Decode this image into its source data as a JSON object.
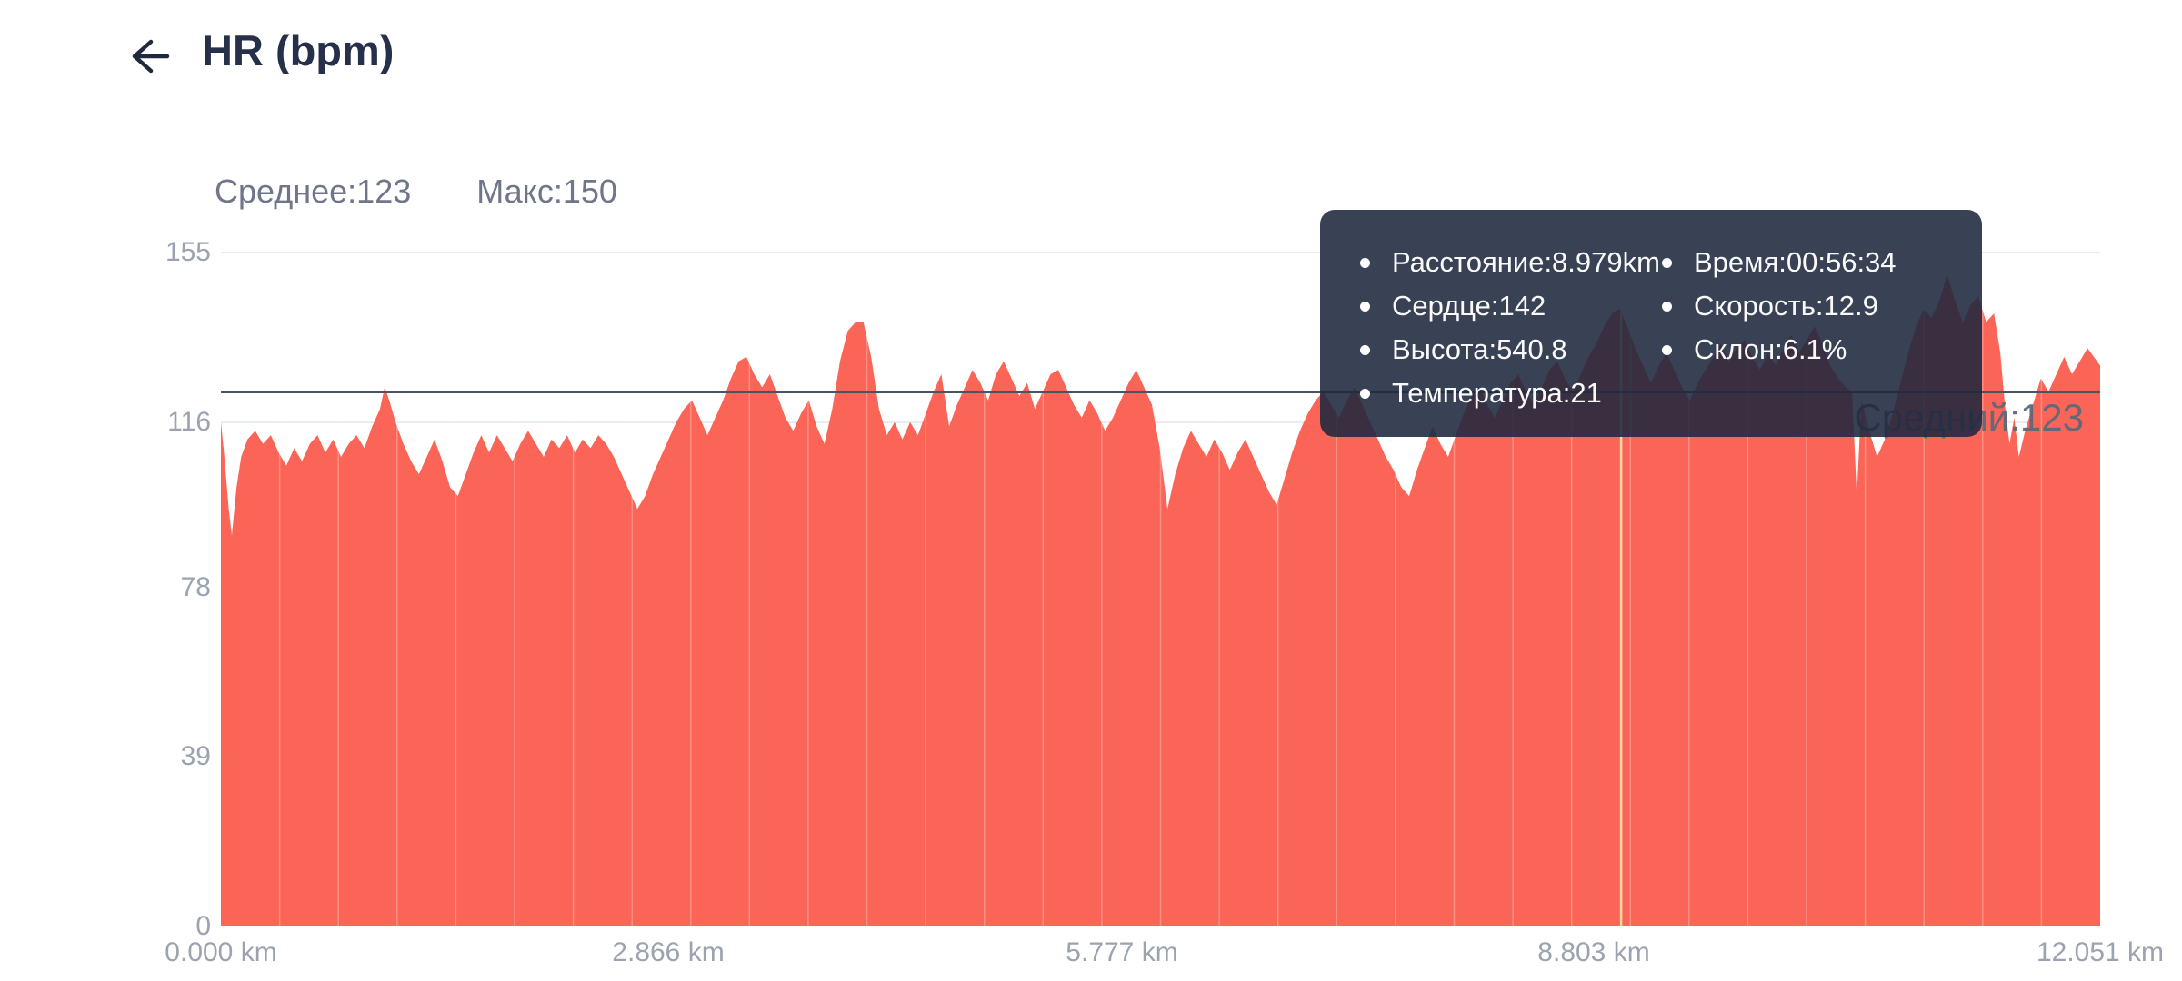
{
  "header": {
    "title": "HR (bpm)",
    "back_icon": "arrow-left"
  },
  "stats": {
    "average_label": "Среднее:123",
    "max_label": "Макс:150"
  },
  "colors": {
    "area": "#FA6557",
    "avg_line": "#4A5362",
    "crosshair": "#FFD9A6",
    "tooltip_bg": "rgba(30,40,62,0.88)",
    "grid": "#E9ECF2",
    "title_text": "#27304A",
    "stats_text": "#6F7689",
    "tick_text": "#9CA3B0"
  },
  "tooltip": {
    "left": [
      "Расстояние:8.979km",
      "Сердце:142",
      "Высота:540.8",
      "Температура:21"
    ],
    "right": [
      "Время:00:56:34",
      "Скорость:12.9",
      "Склон:6.1%"
    ],
    "anchor_km": 8.979,
    "anchor_hr": 142
  },
  "chart_data": {
    "type": "area",
    "title": "HR (bpm)",
    "x_unit": "km",
    "xlim": [
      0,
      12.051
    ],
    "ylim": [
      0,
      155
    ],
    "grid": true,
    "y_ticks": [
      "155",
      "116",
      "78",
      "39",
      "0"
    ],
    "y_tick_values": [
      155,
      116,
      78,
      39,
      0
    ],
    "x_ticks": [
      "0.000 km",
      "2.866 km",
      "5.777 km",
      "8.803 km",
      "12.051 km"
    ],
    "x_tick_values": [
      0,
      2.866,
      5.777,
      8.803,
      12.051
    ],
    "average_value": 123,
    "average_line_label": "Средний:123",
    "max_value": 150,
    "vertical_minor_gridlines": 32,
    "series": [
      {
        "name": "HR",
        "points": [
          [
            0.0,
            116
          ],
          [
            0.02,
            109
          ],
          [
            0.05,
            96
          ],
          [
            0.07,
            90
          ],
          [
            0.1,
            101
          ],
          [
            0.13,
            108
          ],
          [
            0.17,
            112
          ],
          [
            0.22,
            114
          ],
          [
            0.27,
            111
          ],
          [
            0.32,
            113
          ],
          [
            0.37,
            109
          ],
          [
            0.42,
            106
          ],
          [
            0.47,
            110
          ],
          [
            0.52,
            107
          ],
          [
            0.57,
            111
          ],
          [
            0.62,
            113
          ],
          [
            0.67,
            109
          ],
          [
            0.72,
            112
          ],
          [
            0.77,
            108
          ],
          [
            0.82,
            111
          ],
          [
            0.87,
            113
          ],
          [
            0.92,
            110
          ],
          [
            0.97,
            115
          ],
          [
            1.02,
            119
          ],
          [
            1.05,
            124
          ],
          [
            1.08,
            121
          ],
          [
            1.12,
            116
          ],
          [
            1.17,
            111
          ],
          [
            1.22,
            107
          ],
          [
            1.27,
            104
          ],
          [
            1.32,
            108
          ],
          [
            1.37,
            112
          ],
          [
            1.42,
            107
          ],
          [
            1.47,
            101
          ],
          [
            1.52,
            99
          ],
          [
            1.57,
            104
          ],
          [
            1.62,
            109
          ],
          [
            1.67,
            113
          ],
          [
            1.72,
            109
          ],
          [
            1.77,
            113
          ],
          [
            1.82,
            110
          ],
          [
            1.87,
            107
          ],
          [
            1.92,
            111
          ],
          [
            1.97,
            114
          ],
          [
            2.02,
            111
          ],
          [
            2.07,
            108
          ],
          [
            2.12,
            112
          ],
          [
            2.17,
            110
          ],
          [
            2.22,
            113
          ],
          [
            2.27,
            109
          ],
          [
            2.32,
            112
          ],
          [
            2.37,
            110
          ],
          [
            2.42,
            113
          ],
          [
            2.47,
            111
          ],
          [
            2.52,
            108
          ],
          [
            2.57,
            104
          ],
          [
            2.62,
            100
          ],
          [
            2.67,
            96
          ],
          [
            2.72,
            99
          ],
          [
            2.77,
            104
          ],
          [
            2.82,
            108
          ],
          [
            2.87,
            112
          ],
          [
            2.92,
            116
          ],
          [
            2.97,
            119
          ],
          [
            3.02,
            121
          ],
          [
            3.07,
            117
          ],
          [
            3.12,
            113
          ],
          [
            3.17,
            117
          ],
          [
            3.22,
            121
          ],
          [
            3.27,
            126
          ],
          [
            3.32,
            130
          ],
          [
            3.37,
            131
          ],
          [
            3.42,
            127
          ],
          [
            3.47,
            124
          ],
          [
            3.52,
            127
          ],
          [
            3.57,
            122
          ],
          [
            3.62,
            117
          ],
          [
            3.67,
            114
          ],
          [
            3.72,
            118
          ],
          [
            3.77,
            121
          ],
          [
            3.82,
            115
          ],
          [
            3.87,
            111
          ],
          [
            3.92,
            119
          ],
          [
            3.97,
            130
          ],
          [
            4.02,
            137
          ],
          [
            4.07,
            139
          ],
          [
            4.12,
            139
          ],
          [
            4.17,
            131
          ],
          [
            4.22,
            119
          ],
          [
            4.27,
            113
          ],
          [
            4.32,
            116
          ],
          [
            4.37,
            112
          ],
          [
            4.42,
            116
          ],
          [
            4.47,
            113
          ],
          [
            4.52,
            118
          ],
          [
            4.57,
            123
          ],
          [
            4.62,
            127
          ],
          [
            4.67,
            115
          ],
          [
            4.72,
            120
          ],
          [
            4.77,
            124
          ],
          [
            4.82,
            128
          ],
          [
            4.87,
            125
          ],
          [
            4.92,
            121
          ],
          [
            4.97,
            127
          ],
          [
            5.02,
            130
          ],
          [
            5.07,
            126
          ],
          [
            5.12,
            122
          ],
          [
            5.17,
            125
          ],
          [
            5.22,
            119
          ],
          [
            5.27,
            123
          ],
          [
            5.32,
            127
          ],
          [
            5.37,
            128
          ],
          [
            5.42,
            124
          ],
          [
            5.47,
            120
          ],
          [
            5.52,
            117
          ],
          [
            5.57,
            121
          ],
          [
            5.62,
            118
          ],
          [
            5.67,
            114
          ],
          [
            5.72,
            117
          ],
          [
            5.77,
            121
          ],
          [
            5.82,
            125
          ],
          [
            5.87,
            128
          ],
          [
            5.92,
            124
          ],
          [
            5.97,
            120
          ],
          [
            6.02,
            110
          ],
          [
            6.07,
            96
          ],
          [
            6.12,
            104
          ],
          [
            6.17,
            110
          ],
          [
            6.22,
            114
          ],
          [
            6.27,
            111
          ],
          [
            6.32,
            108
          ],
          [
            6.37,
            112
          ],
          [
            6.42,
            109
          ],
          [
            6.47,
            105
          ],
          [
            6.52,
            109
          ],
          [
            6.57,
            112
          ],
          [
            6.62,
            108
          ],
          [
            6.67,
            104
          ],
          [
            6.72,
            100
          ],
          [
            6.77,
            97
          ],
          [
            6.82,
            103
          ],
          [
            6.87,
            109
          ],
          [
            6.92,
            114
          ],
          [
            6.97,
            118
          ],
          [
            7.02,
            121
          ],
          [
            7.07,
            123
          ],
          [
            7.12,
            120
          ],
          [
            7.17,
            117
          ],
          [
            7.22,
            121
          ],
          [
            7.27,
            124
          ],
          [
            7.32,
            120
          ],
          [
            7.37,
            116
          ],
          [
            7.42,
            112
          ],
          [
            7.47,
            108
          ],
          [
            7.52,
            105
          ],
          [
            7.57,
            101
          ],
          [
            7.62,
            99
          ],
          [
            7.67,
            105
          ],
          [
            7.72,
            110
          ],
          [
            7.77,
            115
          ],
          [
            7.82,
            111
          ],
          [
            7.87,
            108
          ],
          [
            7.92,
            113
          ],
          [
            7.97,
            118
          ],
          [
            8.02,
            122
          ],
          [
            8.07,
            124
          ],
          [
            8.12,
            120
          ],
          [
            8.17,
            117
          ],
          [
            8.22,
            121
          ],
          [
            8.27,
            125
          ],
          [
            8.32,
            127
          ],
          [
            8.37,
            123
          ],
          [
            8.42,
            120
          ],
          [
            8.47,
            124
          ],
          [
            8.52,
            128
          ],
          [
            8.57,
            130
          ],
          [
            8.62,
            126
          ],
          [
            8.67,
            123
          ],
          [
            8.72,
            127
          ],
          [
            8.77,
            131
          ],
          [
            8.82,
            134
          ],
          [
            8.87,
            138
          ],
          [
            8.92,
            141
          ],
          [
            8.97,
            142
          ],
          [
            9.02,
            138
          ],
          [
            9.07,
            133
          ],
          [
            9.12,
            129
          ],
          [
            9.17,
            125
          ],
          [
            9.22,
            129
          ],
          [
            9.27,
            132
          ],
          [
            9.32,
            128
          ],
          [
            9.37,
            124
          ],
          [
            9.42,
            121
          ],
          [
            9.47,
            125
          ],
          [
            9.52,
            128
          ],
          [
            9.57,
            131
          ],
          [
            9.62,
            134
          ],
          [
            9.67,
            130
          ],
          [
            9.72,
            133
          ],
          [
            9.77,
            135
          ],
          [
            9.82,
            131
          ],
          [
            9.87,
            128
          ],
          [
            9.92,
            132
          ],
          [
            9.97,
            129
          ],
          [
            10.02,
            133
          ],
          [
            10.07,
            136
          ],
          [
            10.12,
            132
          ],
          [
            10.17,
            135
          ],
          [
            10.22,
            138
          ],
          [
            10.27,
            134
          ],
          [
            10.32,
            129
          ],
          [
            10.37,
            126
          ],
          [
            10.42,
            124
          ],
          [
            10.46,
            123
          ],
          [
            10.49,
            99
          ],
          [
            10.52,
            121
          ],
          [
            10.57,
            114
          ],
          [
            10.62,
            108
          ],
          [
            10.67,
            112
          ],
          [
            10.72,
            118
          ],
          [
            10.77,
            125
          ],
          [
            10.82,
            132
          ],
          [
            10.87,
            138
          ],
          [
            10.92,
            142
          ],
          [
            10.97,
            140
          ],
          [
            11.02,
            144
          ],
          [
            11.07,
            150
          ],
          [
            11.12,
            144
          ],
          [
            11.17,
            139
          ],
          [
            11.22,
            143
          ],
          [
            11.27,
            145
          ],
          [
            11.32,
            139
          ],
          [
            11.37,
            141
          ],
          [
            11.41,
            132
          ],
          [
            11.44,
            120
          ],
          [
            11.47,
            111
          ],
          [
            11.5,
            117
          ],
          [
            11.53,
            108
          ],
          [
            11.57,
            114
          ],
          [
            11.62,
            120
          ],
          [
            11.67,
            126
          ],
          [
            11.72,
            123
          ],
          [
            11.77,
            127
          ],
          [
            11.82,
            131
          ],
          [
            11.87,
            127
          ],
          [
            11.92,
            130
          ],
          [
            11.97,
            133
          ],
          [
            12.01,
            131
          ],
          [
            12.051,
            129
          ]
        ]
      }
    ]
  }
}
